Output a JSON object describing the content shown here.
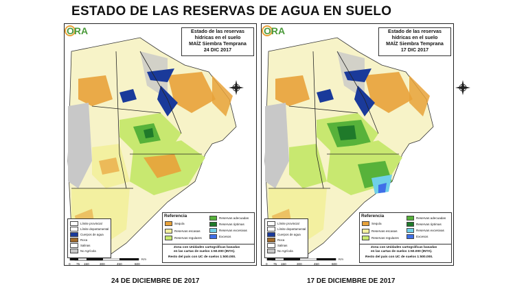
{
  "title": "ESTADO DE LAS RESERVAS DE AGUA EN SUELO",
  "maps": [
    {
      "caption": "24 DE DICIEMBRE DE 2017",
      "box_line1": "Estado de las reservas",
      "box_line2": "hídricas en el suelo",
      "box_line3": "MAÍZ Siembra Temprana",
      "box_date": "24 DIC 2017"
    },
    {
      "caption": "17 DE DICIEMBRE DE 2017",
      "box_line1": "Estado de las reservas",
      "box_line2": "hídricas en el suelo",
      "box_line3": "MAÍZ Siembra Temprana",
      "box_date": "17 DIC 2017"
    }
  ],
  "logo": "ORA",
  "legend": {
    "title": "Referencia",
    "items": [
      {
        "label": "Sequía",
        "color": "#e8a23a"
      },
      {
        "label": "Reservas escasas",
        "color": "#f3f0a0"
      },
      {
        "label": "Reservas regulares",
        "color": "#c8e870"
      },
      {
        "label": "Reservas adecuadas",
        "color": "#57b23a"
      },
      {
        "label": "Reservas óptimas",
        "color": "#1f7a2a"
      },
      {
        "label": "Reservas excesivas",
        "color": "#6fd0e8"
      },
      {
        "label": "Excesos",
        "color": "#3f6fe8"
      }
    ]
  },
  "limits": [
    {
      "label": "Límite provincial",
      "color": "#ffffff"
    },
    {
      "label": "Límite departamental",
      "color": "#ffffff"
    },
    {
      "label": "Cuerpos de agua",
      "color": "#1a3a9a"
    },
    {
      "label": "Roca",
      "color": "#a06a2a"
    },
    {
      "label": "Salinas",
      "color": "#ffffff"
    },
    {
      "label": "No Agrícola",
      "color": "#c8c8c8"
    }
  ],
  "notes": {
    "line1": "Zona con Unidades cartográficas basadas",
    "line2": "en las cartas de suelos 1:50.000 (INTA).",
    "line3": "Resto del país con UC de suelos 1:500.000."
  },
  "scale": {
    "unit": "Km",
    "ticks": [
      "0",
      "75",
      "150",
      "300",
      "450",
      "600"
    ]
  },
  "colors": {
    "drought": "#e8a23a",
    "scarce": "#f3f0a0",
    "regular": "#c8e870",
    "adequate": "#57b23a",
    "optimal": "#1f7a2a",
    "excessive": "#6fd0e8",
    "excess": "#3f6fe8",
    "water": "#1a3a9a",
    "nonagri": "#c8c8c8",
    "rock": "#a06a2a"
  }
}
